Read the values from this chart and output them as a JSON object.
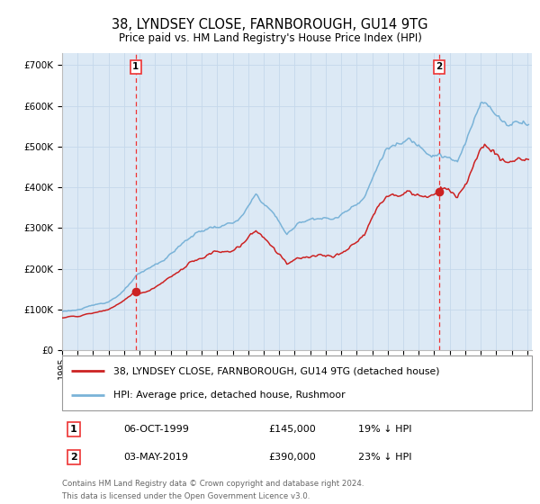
{
  "title": "38, LYNDSEY CLOSE, FARNBOROUGH, GU14 9TG",
  "subtitle": "Price paid vs. HM Land Registry's House Price Index (HPI)",
  "legend_line1": "38, LYNDSEY CLOSE, FARNBOROUGH, GU14 9TG (detached house)",
  "legend_line2": "HPI: Average price, detached house, Rushmoor",
  "annotation1_date": "06-OCT-1999",
  "annotation1_price": "£145,000",
  "annotation1_hpi": "19% ↓ HPI",
  "annotation1_year": 1999.75,
  "annotation1_value": 145000,
  "annotation2_date": "03-MAY-2019",
  "annotation2_price": "£390,000",
  "annotation2_hpi": "23% ↓ HPI",
  "annotation2_year": 2019.33,
  "annotation2_value": 390000,
  "ylabel_ticks": [
    "£0",
    "£100K",
    "£200K",
    "£300K",
    "£400K",
    "£500K",
    "£600K",
    "£700K"
  ],
  "ytick_values": [
    0,
    100000,
    200000,
    300000,
    400000,
    500000,
    600000,
    700000
  ],
  "ylim": [
    0,
    730000
  ],
  "footer_line1": "Contains HM Land Registry data © Crown copyright and database right 2024.",
  "footer_line2": "This data is licensed under the Open Government Licence v3.0.",
  "bg_color": "#dce9f5",
  "hpi_color": "#7ab3d8",
  "price_color": "#cc2222",
  "grid_color": "#c5d8eb",
  "vline_color": "#ee3333",
  "white": "#ffffff",
  "border_color": "#aaaaaa",
  "footer_color": "#666666"
}
